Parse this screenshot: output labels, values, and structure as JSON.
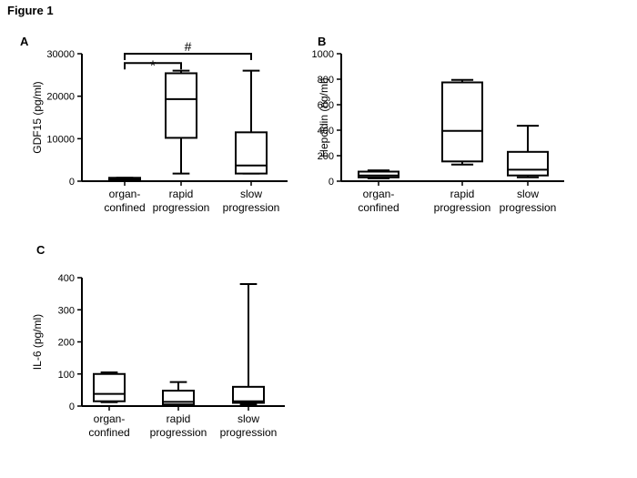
{
  "figure_title": "Figure 1",
  "chart_data": [
    {
      "type": "box",
      "panel": "A",
      "title": "",
      "ylabel": "GDF15 (pg/ml)",
      "xlabel": "",
      "ylim": [
        0,
        30000
      ],
      "yticks": [
        0,
        10000,
        20000,
        30000
      ],
      "ytick_labels": [
        "0",
        "10000",
        "20000",
        "30000"
      ],
      "categories": [
        [
          "organ-",
          "confined"
        ],
        [
          "rapid",
          "progression"
        ],
        [
          "slow",
          "progression"
        ]
      ],
      "boxes": [
        {
          "min": 300,
          "q1": 400,
          "median": 600,
          "q3": 800,
          "max": 800
        },
        {
          "min": 1800,
          "q1": 10200,
          "median": 19300,
          "q3": 25400,
          "max": 26000
        },
        {
          "min": 1800,
          "q1": 1800,
          "median": 3700,
          "q3": 11500,
          "max": 26000
        }
      ],
      "annotations": [
        {
          "type": "bracket",
          "from": 0,
          "to": 1,
          "level": 27800,
          "label": "*"
        },
        {
          "type": "bracket",
          "from": 0,
          "to": 2,
          "level": 30000,
          "label": "#"
        }
      ]
    },
    {
      "type": "box",
      "panel": "B",
      "title": "",
      "ylabel": "Hepcidin (ng/ml)",
      "xlabel": "",
      "ylim": [
        0,
        1000
      ],
      "yticks": [
        0,
        200,
        400,
        600,
        800,
        1000
      ],
      "ytick_labels": [
        "0",
        "200",
        "400",
        "600",
        "800",
        "1000"
      ],
      "categories": [
        [
          "organ-",
          "confined"
        ],
        [
          "rapid",
          "progression"
        ],
        [
          "slow",
          "progression"
        ]
      ],
      "boxes": [
        {
          "min": 22,
          "q1": 30,
          "median": 45,
          "q3": 75,
          "max": 85
        },
        {
          "min": 130,
          "q1": 155,
          "median": 395,
          "q3": 775,
          "max": 795
        },
        {
          "min": 30,
          "q1": 45,
          "median": 90,
          "q3": 230,
          "max": 435
        }
      ],
      "annotations": []
    },
    {
      "type": "box",
      "panel": "C",
      "title": "",
      "ylabel": "IL-6 (pg/ml)",
      "xlabel": "",
      "ylim": [
        0,
        400
      ],
      "yticks": [
        0,
        100,
        200,
        300,
        400
      ],
      "ytick_labels": [
        "0",
        "100",
        "200",
        "300",
        "400"
      ],
      "categories": [
        [
          "organ-",
          "confined"
        ],
        [
          "rapid",
          "progression"
        ],
        [
          "slow",
          "progression"
        ]
      ],
      "boxes": [
        {
          "min": 12,
          "q1": 15,
          "median": 38,
          "q3": 100,
          "max": 105
        },
        {
          "min": 2,
          "q1": 5,
          "median": 13,
          "q3": 48,
          "max": 75
        },
        {
          "min": 5,
          "q1": 10,
          "median": 15,
          "q3": 60,
          "max": 380
        }
      ],
      "annotations": []
    }
  ]
}
